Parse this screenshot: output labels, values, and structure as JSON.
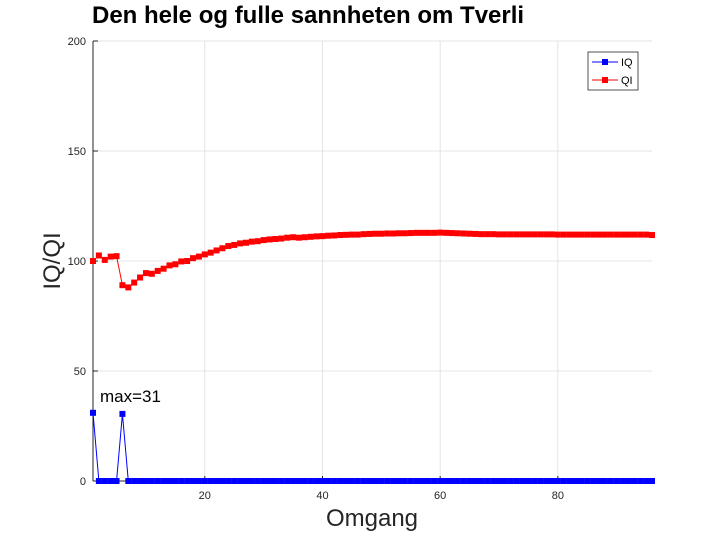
{
  "chart_data": {
    "type": "line",
    "title": "Den hele og fulle sannheten om Tverli",
    "xlabel": "Omgang",
    "ylabel": "IQ/QI",
    "xlim": [
      1,
      96
    ],
    "ylim": [
      0,
      200
    ],
    "xticks": [
      20,
      40,
      60,
      80
    ],
    "yticks": [
      0,
      50,
      100,
      150,
      200
    ],
    "grid": true,
    "legend_position": "top-right",
    "annotation": {
      "text": "max=31"
    },
    "series": [
      {
        "name": "IQ",
        "color": "#0000ff",
        "marker": "square",
        "x": [
          1,
          2,
          3,
          4,
          5,
          6,
          7,
          8,
          9,
          10,
          11,
          12,
          13,
          14,
          15,
          16,
          17,
          18,
          19,
          20,
          21,
          22,
          23,
          24,
          25,
          26,
          27,
          28,
          29,
          30,
          31,
          32,
          33,
          34,
          35,
          36,
          37,
          38,
          39,
          40,
          41,
          42,
          43,
          44,
          45,
          46,
          47,
          48,
          49,
          50,
          51,
          52,
          53,
          54,
          55,
          56,
          57,
          58,
          59,
          60,
          61,
          62,
          63,
          64,
          65,
          66,
          67,
          68,
          69,
          70,
          71,
          72,
          73,
          74,
          75,
          76,
          77,
          78,
          79,
          80,
          81,
          82,
          83,
          84,
          85,
          86,
          87,
          88,
          89,
          90,
          91,
          92,
          93,
          94,
          95,
          96
        ],
        "values": [
          31,
          0,
          0,
          0,
          0,
          30.5,
          0,
          0,
          0,
          0,
          0,
          0,
          0,
          0,
          0,
          0,
          0,
          0,
          0,
          0,
          0,
          0,
          0,
          0,
          0,
          0,
          0,
          0,
          0,
          0,
          0,
          0,
          0,
          0,
          0,
          0,
          0,
          0,
          0,
          0,
          0,
          0,
          0,
          0,
          0,
          0,
          0,
          0,
          0,
          0,
          0,
          0,
          0,
          0,
          0,
          0,
          0,
          0,
          0,
          0,
          0,
          0,
          0,
          0,
          0,
          0,
          0,
          0,
          0,
          0,
          0,
          0,
          0,
          0,
          0,
          0,
          0,
          0,
          0,
          0,
          0,
          0,
          0,
          0,
          0,
          0,
          0,
          0,
          0,
          0,
          0,
          0,
          0,
          0,
          0,
          0
        ]
      },
      {
        "name": "QI",
        "color": "#ff0000",
        "marker": "square",
        "x": [
          1,
          2,
          3,
          4,
          5,
          6,
          7,
          8,
          9,
          10,
          11,
          12,
          13,
          14,
          15,
          16,
          17,
          18,
          19,
          20,
          21,
          22,
          23,
          24,
          25,
          26,
          27,
          28,
          29,
          30,
          31,
          32,
          33,
          34,
          35,
          36,
          37,
          38,
          39,
          40,
          41,
          42,
          43,
          44,
          45,
          46,
          47,
          48,
          49,
          50,
          51,
          52,
          53,
          54,
          55,
          56,
          57,
          58,
          59,
          60,
          61,
          62,
          63,
          64,
          65,
          66,
          67,
          68,
          69,
          70,
          71,
          72,
          73,
          74,
          75,
          76,
          77,
          78,
          79,
          80,
          81,
          82,
          83,
          84,
          85,
          86,
          87,
          88,
          89,
          90,
          91,
          92,
          93,
          94,
          95,
          96
        ],
        "values": [
          100,
          102.5,
          100.5,
          102,
          102.2,
          89,
          88,
          90.2,
          92.5,
          94.5,
          94.2,
          95.5,
          96.5,
          98,
          98.5,
          99.8,
          100,
          101.3,
          102,
          103,
          103.8,
          104.8,
          105.8,
          106.8,
          107.3,
          108,
          108.3,
          108.8,
          109,
          109.5,
          109.8,
          110,
          110.2,
          110.6,
          110.8,
          110.6,
          110.8,
          111,
          111.2,
          111.3,
          111.5,
          111.6,
          111.8,
          111.9,
          112,
          112,
          112.2,
          112.3,
          112.4,
          112.4,
          112.5,
          112.5,
          112.6,
          112.6,
          112.7,
          112.8,
          112.8,
          112.8,
          112.8,
          112.9,
          112.8,
          112.7,
          112.6,
          112.5,
          112.4,
          112.3,
          112.2,
          112.2,
          112.2,
          112.1,
          112.1,
          112.1,
          112.1,
          112.1,
          112.1,
          112.1,
          112.1,
          112.1,
          112.1,
          112,
          112,
          112,
          112,
          112,
          112,
          112,
          112,
          112,
          112,
          112,
          112,
          112,
          112,
          112,
          112,
          111.8
        ]
      }
    ]
  }
}
